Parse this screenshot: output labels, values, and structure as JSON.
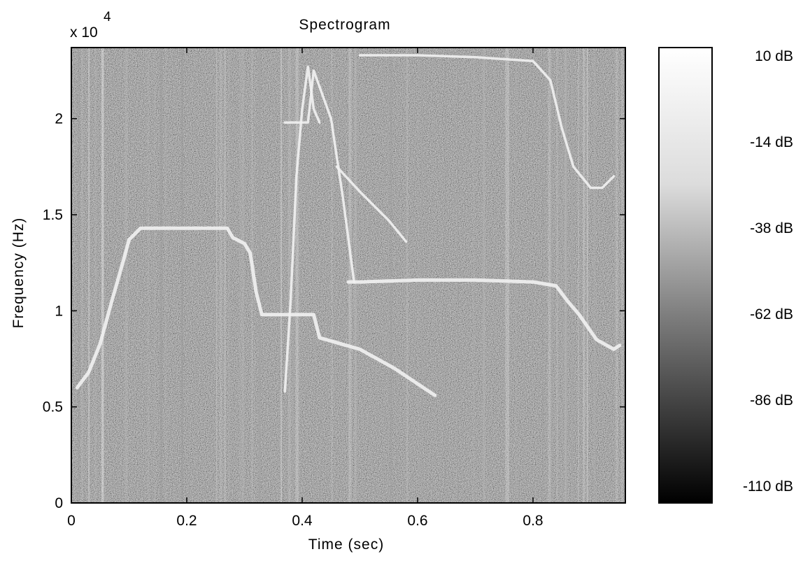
{
  "chart_data": {
    "type": "heatmap",
    "title": "Spectrogram",
    "xlabel": "Time (sec)",
    "ylabel": "Frequency (Hz)",
    "y_multiplier_label": "x 10",
    "y_multiplier_exponent": "4",
    "xlim": [
      0,
      0.96
    ],
    "ylim": [
      0,
      23700
    ],
    "x_ticks": [
      0,
      0.2,
      0.4,
      0.6,
      0.8
    ],
    "x_tick_labels": [
      "0",
      "0.2",
      "0.4",
      "0.6",
      "0.8"
    ],
    "y_ticks": [
      0,
      5000,
      10000,
      15000,
      20000
    ],
    "y_tick_labels": [
      "0",
      "0.5",
      "1",
      "1.5",
      "2"
    ],
    "colormap": "gray",
    "colorbar": {
      "tick_labels": [
        "10 dB",
        "-14 dB",
        "-38 dB",
        "-62 dB",
        "-86 dB",
        "-110 dB"
      ],
      "values": [
        10,
        -14,
        -38,
        -62,
        -86,
        -110
      ]
    },
    "series": [
      {
        "x": [
          0.01,
          0.03,
          0.05,
          0.07,
          0.09,
          0.1,
          0.12,
          0.2,
          0.27,
          0.28,
          0.3,
          0.31,
          0.32,
          0.33,
          0.35,
          0.42,
          0.43,
          0.5,
          0.56,
          0.6,
          0.63
        ],
        "y": [
          6000,
          6800,
          8300,
          10500,
          12600,
          13700,
          14300,
          14300,
          14300,
          13800,
          13500,
          13000,
          11000,
          9800,
          9800,
          9800,
          8600,
          8000,
          7000,
          6200,
          5600
        ]
      },
      {
        "x": [
          0.37,
          0.38,
          0.39,
          0.4,
          0.41,
          0.42,
          0.43
        ],
        "y": [
          5800,
          10500,
          17000,
          20500,
          22700,
          20500,
          19800
        ]
      },
      {
        "x": [
          0.37,
          0.39,
          0.41,
          0.42,
          0.45,
          0.46,
          0.47,
          0.49
        ],
        "y": [
          19800,
          19800,
          19800,
          22500,
          20000,
          18000,
          16000,
          11500
        ]
      },
      {
        "x": [
          0.46,
          0.5,
          0.55,
          0.58
        ],
        "y": [
          17500,
          16200,
          14700,
          13600
        ]
      },
      {
        "x": [
          0.48,
          0.5,
          0.6,
          0.7,
          0.8,
          0.84,
          0.86,
          0.88,
          0.91,
          0.94,
          0.95
        ],
        "y": [
          11500,
          11500,
          11600,
          11600,
          11500,
          11300,
          10500,
          9800,
          8500,
          8000,
          8200
        ]
      },
      {
        "x": [
          0.5,
          0.6,
          0.7,
          0.8,
          0.83,
          0.85,
          0.87,
          0.9,
          0.92,
          0.94
        ],
        "y": [
          23300,
          23300,
          23200,
          23000,
          22000,
          19500,
          17500,
          16400,
          16400,
          17000
        ]
      }
    ]
  }
}
